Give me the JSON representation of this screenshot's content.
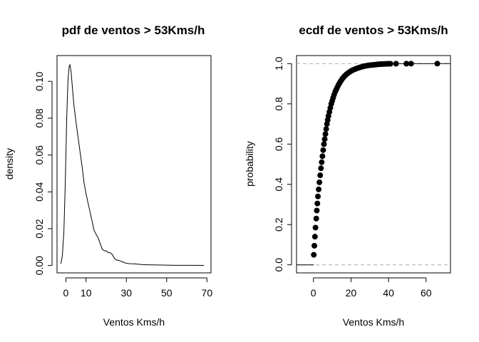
{
  "chart_data": [
    {
      "type": "line",
      "title": "pdf de ventos > 53Kms/h",
      "xlabel": "Ventos Kms/h",
      "ylabel": "density",
      "xlim": [
        -4.4,
        72
      ],
      "ylim": [
        -0.004,
        0.114
      ],
      "xticks": [
        0,
        10,
        30,
        50,
        70
      ],
      "yticks": [
        "0.00",
        "0.02",
        "0.04",
        "0.06",
        "0.08",
        "0.10"
      ],
      "series": [
        {
          "x": [
            -2.5,
            -1.8,
            -1,
            -0.3,
            0.4,
            1,
            1.6,
            2,
            2.6,
            3.2,
            4,
            5,
            6,
            7,
            8,
            9,
            10,
            11,
            12,
            13,
            14,
            15,
            16,
            17,
            18,
            19,
            20,
            21,
            22,
            23,
            24,
            25,
            26,
            27,
            28,
            30,
            32,
            34,
            36,
            38,
            40,
            45,
            50,
            55,
            60,
            65,
            68.5
          ],
          "values": [
            0.001,
            0.005,
            0.018,
            0.045,
            0.08,
            0.1,
            0.108,
            0.109,
            0.105,
            0.097,
            0.087,
            0.078,
            0.07,
            0.062,
            0.054,
            0.045,
            0.039,
            0.034,
            0.029,
            0.024,
            0.019,
            0.017,
            0.015,
            0.012,
            0.009,
            0.008,
            0.008,
            0.007,
            0.007,
            0.006,
            0.004,
            0.003,
            0.0028,
            0.0025,
            0.002,
            0.0012,
            0.001,
            0.0009,
            0.0007,
            0.0005,
            0.0004,
            0.0003,
            0.0002,
            0.0001,
            0.0001,
            0.0001,
            5e-05
          ]
        }
      ]
    },
    {
      "type": "scatter",
      "title": "ecdf de ventos > 53Kms/h",
      "xlabel": "Ventos Kms/h",
      "ylabel": "probability",
      "xlim": [
        -9,
        73
      ],
      "ylim": [
        -0.04,
        1.04
      ],
      "xticks": [
        0,
        20,
        40,
        60
      ],
      "yticks": [
        "0.0",
        "0.2",
        "0.4",
        "0.6",
        "0.8",
        "1.0"
      ],
      "reference_lines": [
        0,
        1
      ],
      "series": [
        {
          "x": [
            0.2,
            0.5,
            0.8,
            1.1,
            1.5,
            1.8,
            2.1,
            2.4,
            2.8,
            3.2,
            3.6,
            4.0,
            4.4,
            4.8,
            5.2,
            5.6,
            6.0,
            6.4,
            6.8,
            7.2,
            7.6,
            8.0,
            8.5,
            9.0,
            9.5,
            10.0,
            10.5,
            11.0,
            11.6,
            12.2,
            12.8,
            13.4,
            14.0,
            14.7,
            15.4,
            16.1,
            16.8,
            17.6,
            18.4,
            19.2,
            20.0,
            21.0,
            22.0,
            23.0,
            24.0,
            25.0,
            26.0,
            27.0,
            28.0,
            29.0,
            30.0,
            31.0,
            32.0,
            33.0,
            34.0,
            35.0,
            36.0,
            37.0,
            38.0,
            39.0,
            40.0,
            41.0,
            44.0,
            49.5,
            52.0,
            66.0
          ],
          "values": [
            0.05,
            0.095,
            0.14,
            0.185,
            0.23,
            0.27,
            0.305,
            0.34,
            0.375,
            0.41,
            0.445,
            0.48,
            0.51,
            0.54,
            0.57,
            0.6,
            0.625,
            0.65,
            0.675,
            0.7,
            0.72,
            0.74,
            0.76,
            0.78,
            0.8,
            0.815,
            0.83,
            0.845,
            0.86,
            0.872,
            0.884,
            0.895,
            0.905,
            0.915,
            0.925,
            0.933,
            0.94,
            0.947,
            0.953,
            0.958,
            0.963,
            0.968,
            0.972,
            0.976,
            0.979,
            0.982,
            0.985,
            0.987,
            0.989,
            0.991,
            0.992,
            0.993,
            0.994,
            0.995,
            0.996,
            0.997,
            0.9975,
            0.998,
            0.9985,
            0.999,
            0.9992,
            0.9994,
            0.9996,
            0.9997,
            0.9998,
            1.0
          ]
        }
      ]
    }
  ]
}
